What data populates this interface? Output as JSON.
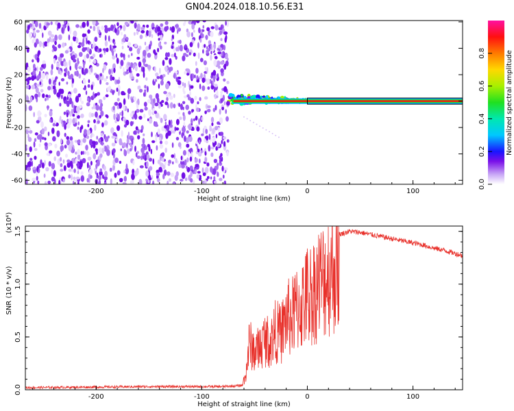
{
  "title": "GN04.2024.018.10.56.E31",
  "chart_data": [
    {
      "type": "heatmap",
      "xlabel": "Height of straight line (km)",
      "ylabel": "Frequency (Hz)",
      "xlim": [
        -267,
        147
      ],
      "ylim": [
        -63,
        61
      ],
      "x_ticks": [
        -200,
        -100,
        0,
        100
      ],
      "y_ticks": [
        -60,
        -40,
        -20,
        0,
        20,
        40,
        60
      ],
      "grid": false,
      "regions": [
        {
          "x": [
            -267,
            -75
          ],
          "content": "broadband noise, low normalized amplitude"
        },
        {
          "x": [
            -75,
            0
          ],
          "content": "narrowband signal near 0 Hz with small scatter"
        },
        {
          "x": [
            0,
            147
          ],
          "content": "steady line at 0 Hz, maximum amplitude"
        }
      ],
      "colorbar": {
        "label": "Normalized spectral amplitude",
        "range": [
          0,
          1
        ],
        "ticks": [
          0.0,
          0.2,
          0.4,
          0.6,
          0.8
        ]
      }
    },
    {
      "type": "line",
      "xlabel": "Height of straight line (km)",
      "ylabel": "SNR (10 * v/v)",
      "yscale_label": "(x10⁴)",
      "xlim": [
        -267,
        147
      ],
      "ylim": [
        0,
        1.55
      ],
      "x_ticks": [
        -200,
        -100,
        0,
        100
      ],
      "y_ticks": [
        0.0,
        0.5,
        1.0,
        1.5
      ],
      "grid": false,
      "color": "#e8302a",
      "series": [
        {
          "x": [
            -267,
            -150,
            -80,
            -62,
            -58,
            -55,
            -50,
            -45,
            -40,
            -35,
            -30,
            -25,
            -20,
            -15,
            -10,
            -5,
            0,
            5,
            10,
            15,
            20,
            25,
            30,
            40,
            50,
            60,
            70,
            80,
            90,
            100,
            110,
            120,
            130,
            140,
            147
          ],
          "values": [
            0.02,
            0.03,
            0.03,
            0.04,
            0.2,
            0.55,
            0.45,
            0.5,
            0.6,
            0.55,
            0.7,
            0.65,
            0.85,
            0.85,
            0.95,
            1.0,
            1.12,
            1.15,
            1.25,
            1.3,
            1.38,
            1.42,
            1.47,
            1.5,
            1.49,
            1.47,
            1.45,
            1.43,
            1.41,
            1.39,
            1.37,
            1.34,
            1.32,
            1.29,
            1.27
          ]
        }
      ]
    }
  ]
}
